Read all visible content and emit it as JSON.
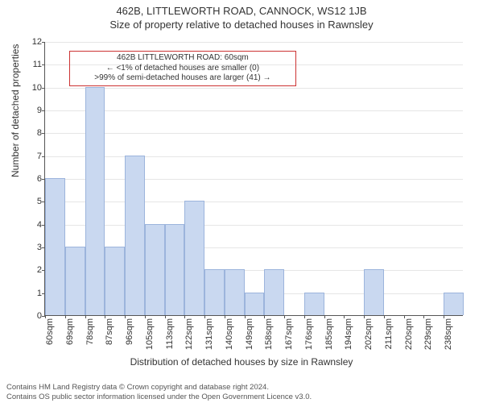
{
  "title_line1": "462B, LITTLEWORTH ROAD, CANNOCK, WS12 1JB",
  "title_line2": "Size of property relative to detached houses in Rawnsley",
  "ylabel": "Number of detached properties",
  "xlabel": "Distribution of detached houses by size in Rawnsley",
  "chart": {
    "type": "histogram",
    "ylim": [
      0,
      12
    ],
    "ytick_step": 1,
    "x_categories": [
      "60sqm",
      "69sqm",
      "78sqm",
      "87sqm",
      "96sqm",
      "105sqm",
      "113sqm",
      "122sqm",
      "131sqm",
      "140sqm",
      "149sqm",
      "158sqm",
      "167sqm",
      "176sqm",
      "185sqm",
      "194sqm",
      "202sqm",
      "211sqm",
      "220sqm",
      "229sqm",
      "238sqm"
    ],
    "bins": [
      {
        "x": 0.0,
        "w": 1,
        "h": 6
      },
      {
        "x": 1.0,
        "w": 1,
        "h": 3
      },
      {
        "x": 2.0,
        "w": 1,
        "h": 10
      },
      {
        "x": 3.0,
        "w": 1,
        "h": 3
      },
      {
        "x": 4.0,
        "w": 1,
        "h": 7
      },
      {
        "x": 5.0,
        "w": 1,
        "h": 4
      },
      {
        "x": 6.0,
        "w": 1,
        "h": 4
      },
      {
        "x": 7.0,
        "w": 1,
        "h": 5
      },
      {
        "x": 8.0,
        "w": 1,
        "h": 2
      },
      {
        "x": 9.0,
        "w": 1,
        "h": 2
      },
      {
        "x": 10.0,
        "w": 1,
        "h": 1
      },
      {
        "x": 11.0,
        "w": 1,
        "h": 2
      },
      {
        "x": 12.0,
        "w": 1,
        "h": 0
      },
      {
        "x": 13.0,
        "w": 1,
        "h": 1
      },
      {
        "x": 14.0,
        "w": 1,
        "h": 0
      },
      {
        "x": 15.0,
        "w": 1,
        "h": 0
      },
      {
        "x": 16.0,
        "w": 1,
        "h": 2
      },
      {
        "x": 17.0,
        "w": 1,
        "h": 0
      },
      {
        "x": 18.0,
        "w": 1,
        "h": 0
      },
      {
        "x": 19.0,
        "w": 1,
        "h": 0
      },
      {
        "x": 20.0,
        "w": 1,
        "h": 1
      }
    ],
    "bar_color": "#c9d8f0",
    "bar_border": "#9cb4dc",
    "grid_color": "#e6e6e6",
    "background": "#ffffff",
    "axis_color": "#555555",
    "tick_fontsize": 11,
    "label_fontsize": 12
  },
  "annotation": {
    "line1": "462B LITTLEWORTH ROAD: 60sqm",
    "line2": "← <1% of detached houses are smaller (0)",
    "line3": ">99% of semi-detached houses are larger (41) →",
    "border_color": "#cc3333",
    "left_category_index": 1.2,
    "top_yvalue": 11.6,
    "width_categories": 11
  },
  "footer_line1": "Contains HM Land Registry data © Crown copyright and database right 2024.",
  "footer_line2": "Contains OS public sector information licensed under the Open Government Licence v3.0."
}
